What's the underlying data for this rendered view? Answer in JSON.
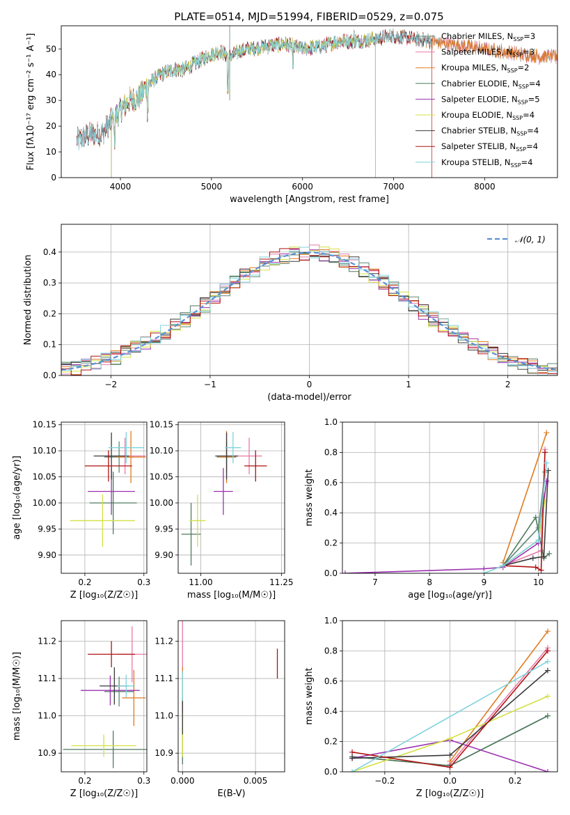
{
  "colors": {
    "series": [
      "#5e8874",
      "#e879a8",
      "#e07a1f",
      "#4e7a5e",
      "#9b30b0",
      "#d4e040",
      "#3a3a3a",
      "#b01010",
      "#7fd3dd"
    ],
    "normal": "#5b8fd6",
    "grid": "#b0b0b0"
  },
  "figure": {
    "title": "PLATE=0514, MJD=51994, FIBERID=0529, z=0.075"
  },
  "chart_data": [
    {
      "id": "spectrum",
      "type": "line",
      "title": "PLATE=0514, MJD=51994, FIBERID=0529, z=0.075",
      "xlabel": "wavelength [Angstrom, rest frame]",
      "ylabel": "Flux [fλ10⁻¹⁷ erg cm⁻² s⁻¹ A⁻¹]",
      "xlim": [
        3350,
        8800
      ],
      "ylim": [
        0,
        59
      ],
      "xticks": [
        4000,
        5000,
        6000,
        7000,
        8000
      ],
      "yticks": [
        0,
        10,
        20,
        30,
        40,
        50
      ],
      "grid": false,
      "legend_position": "top-right",
      "legend": [
        {
          "label": "Chabrier MILES, N",
          "sub": "SSP",
          "suffix": "=3"
        },
        {
          "label": "Salpeter MILES, N",
          "sub": "SSP",
          "suffix": "=3"
        },
        {
          "label": "Kroupa MILES, N",
          "sub": "SSP",
          "suffix": "=2"
        },
        {
          "label": "Chabrier ELODIE, N",
          "sub": "SSP",
          "suffix": "=4"
        },
        {
          "label": "Salpeter ELODIE, N",
          "sub": "SSP",
          "suffix": "=5"
        },
        {
          "label": "Kroupa ELODIE, N",
          "sub": "SSP",
          "suffix": "=4"
        },
        {
          "label": "Chabrier STELIB, N",
          "sub": "SSP",
          "suffix": "=4"
        },
        {
          "label": "Salpeter STELIB, N",
          "sub": "SSP",
          "suffix": "=4"
        },
        {
          "label": "Kroupa STELIB, N",
          "sub": "SSP",
          "suffix": "=4"
        }
      ],
      "continuum": [
        [
          3520,
          14
        ],
        [
          3600,
          16
        ],
        [
          3700,
          17
        ],
        [
          3800,
          17
        ],
        [
          3900,
          22
        ],
        [
          4000,
          26
        ],
        [
          4100,
          30
        ],
        [
          4200,
          31
        ],
        [
          4300,
          36
        ],
        [
          4400,
          39
        ],
        [
          4500,
          41
        ],
        [
          4600,
          42
        ],
        [
          4700,
          42
        ],
        [
          4800,
          44
        ],
        [
          4900,
          46
        ],
        [
          5000,
          48
        ],
        [
          5100,
          49
        ],
        [
          5200,
          47
        ],
        [
          5300,
          49
        ],
        [
          5400,
          50
        ],
        [
          5600,
          51
        ],
        [
          5800,
          52
        ],
        [
          6000,
          50
        ],
        [
          6200,
          51
        ],
        [
          6400,
          53
        ],
        [
          6600,
          53
        ],
        [
          6800,
          54
        ],
        [
          7000,
          55
        ],
        [
          7200,
          54
        ],
        [
          7400,
          53
        ],
        [
          7600,
          52
        ],
        [
          7800,
          51
        ],
        [
          8000,
          50
        ],
        [
          8200,
          49
        ],
        [
          8400,
          48
        ],
        [
          8600,
          47
        ],
        [
          8800,
          47
        ]
      ],
      "elodie_range": [
        3900,
        6800
      ],
      "stelib_range": [
        3520,
        7420
      ],
      "miles_range": [
        3520,
        8800
      ]
    },
    {
      "id": "residuals",
      "type": "line",
      "xlabel": "(data-model)/error",
      "ylabel": "Normed distribution",
      "xlim": [
        -2.5,
        2.5
      ],
      "ylim": [
        0,
        0.49
      ],
      "xticks": [
        -2,
        -1,
        0,
        1,
        2
      ],
      "yticks": [
        0.0,
        0.1,
        0.2,
        0.3,
        0.4
      ],
      "grid": true,
      "legend_position": "top-right",
      "legend": [
        {
          "label": "𝒩(0, 1)",
          "style": "dashed"
        }
      ],
      "bin_width": 0.1
    },
    {
      "id": "age_vs_Z",
      "type": "scatter",
      "xlabel": "Z [log₁₀(Z/Z☉)]",
      "ylabel": "age  [log₁₀(age/yr)]",
      "xlim": [
        0.16,
        0.305
      ],
      "ylim": [
        9.865,
        10.155
      ],
      "xticks": [
        0.2,
        0.3
      ],
      "yticks": [
        9.9,
        9.95,
        10.0,
        10.05,
        10.1,
        10.15
      ],
      "grid": true,
      "points": [
        {
          "x": 0.258,
          "y": 10.088,
          "xerr": 0.025,
          "yerr": 0.03
        },
        {
          "x": 0.268,
          "y": 10.09,
          "xerr": 0.035,
          "yerr": 0.035
        },
        {
          "x": 0.278,
          "y": 10.088,
          "xerr": 0.025,
          "yerr": 0.05
        },
        {
          "x": 0.248,
          "y": 10.0,
          "xerr": 0.04,
          "yerr": 0.06
        },
        {
          "x": 0.245,
          "y": 10.022,
          "xerr": 0.04,
          "yerr": 0.045
        },
        {
          "x": 0.23,
          "y": 9.966,
          "xerr": 0.055,
          "yerr": 0.05
        },
        {
          "x": 0.245,
          "y": 10.09,
          "xerr": 0.03,
          "yerr": 0.045
        },
        {
          "x": 0.24,
          "y": 10.071,
          "xerr": 0.04,
          "yerr": 0.03
        },
        {
          "x": 0.27,
          "y": 10.106,
          "xerr": 0.03,
          "yerr": 0.03
        }
      ]
    },
    {
      "id": "age_vs_mass",
      "type": "scatter",
      "xlabel": "mass [log₁₀(M/M☉)]",
      "ylabel": "",
      "xlim": [
        10.93,
        11.26
      ],
      "ylim": [
        9.865,
        10.155
      ],
      "xticks": [
        11.0,
        11.25
      ],
      "yticks": [
        9.9,
        9.95,
        10.0,
        10.05,
        10.1,
        10.15
      ],
      "grid": true,
      "points": [
        {
          "x": 11.08,
          "y": 10.088,
          "xerr": 0.03,
          "yerr": 0.03
        },
        {
          "x": 11.15,
          "y": 10.09,
          "xerr": 0.04,
          "yerr": 0.035
        },
        {
          "x": 11.08,
          "y": 10.088,
          "xerr": 0.025,
          "yerr": 0.05
        },
        {
          "x": 10.97,
          "y": 9.94,
          "xerr": 0.03,
          "yerr": 0.06
        },
        {
          "x": 11.07,
          "y": 10.022,
          "xerr": 0.03,
          "yerr": 0.045
        },
        {
          "x": 10.99,
          "y": 9.966,
          "xerr": 0.025,
          "yerr": 0.05
        },
        {
          "x": 11.08,
          "y": 10.09,
          "xerr": 0.035,
          "yerr": 0.045
        },
        {
          "x": 11.17,
          "y": 10.071,
          "xerr": 0.035,
          "yerr": 0.03
        },
        {
          "x": 11.1,
          "y": 10.106,
          "xerr": 0.025,
          "yerr": 0.03
        }
      ]
    },
    {
      "id": "weight_vs_age",
      "type": "line",
      "xlabel": "age  [log₁₀(age/yr)]",
      "ylabel": "mass weight",
      "xlim": [
        6.4,
        10.35
      ],
      "ylim": [
        0.0,
        1.0
      ],
      "xticks": [
        7,
        8,
        9,
        10
      ],
      "yticks": [
        0.0,
        0.2,
        0.4,
        0.6,
        0.8,
        1.0
      ],
      "grid": true,
      "series": [
        {
          "x": [
            9.35,
            10.0,
            10.12
          ],
          "y": [
            0.05,
            0.3,
            0.67
          ]
        },
        {
          "x": [
            9.35,
            10.05,
            10.12
          ],
          "y": [
            0.05,
            0.15,
            0.82
          ]
        },
        {
          "x": [
            9.35,
            10.15
          ],
          "y": [
            0.07,
            0.93
          ]
        },
        {
          "x": [
            9.35,
            9.95,
            10.1,
            10.2
          ],
          "y": [
            0.05,
            0.37,
            0.1,
            0.13
          ]
        },
        {
          "x": [
            6.45,
            9.0,
            9.35,
            10.0,
            10.15
          ],
          "y": [
            0.0,
            0.03,
            0.04,
            0.2,
            0.61
          ]
        },
        {
          "x": [
            9.0,
            9.35,
            10.0,
            10.12
          ],
          "y": [
            0.0,
            0.05,
            0.22,
            0.48
          ]
        },
        {
          "x": [
            9.35,
            9.9,
            10.1,
            10.18
          ],
          "y": [
            0.05,
            0.1,
            0.11,
            0.68
          ]
        },
        {
          "x": [
            9.35,
            9.95,
            10.05,
            10.12
          ],
          "y": [
            0.05,
            0.04,
            0.02,
            0.8
          ]
        },
        {
          "x": [
            9.0,
            9.35,
            10.0,
            10.15
          ],
          "y": [
            0.0,
            0.05,
            0.22,
            0.73
          ]
        }
      ]
    },
    {
      "id": "mass_vs_Z",
      "type": "scatter",
      "xlabel": "Z [log₁₀(Z/Z☉)]",
      "ylabel": "mass [log₁₀(M/M☉)]",
      "xlim": [
        0.16,
        0.305
      ],
      "ylim": [
        10.85,
        11.255
      ],
      "xticks": [
        0.2,
        0.3
      ],
      "yticks": [
        10.9,
        11.0,
        11.1,
        11.2
      ],
      "grid": true,
      "points": [
        {
          "x": 0.258,
          "y": 11.065,
          "xerr": 0.025,
          "yerr": 0.04
        },
        {
          "x": 0.28,
          "y": 11.165,
          "xerr": 0.025,
          "yerr": 0.075
        },
        {
          "x": 0.283,
          "y": 11.048,
          "xerr": 0.02,
          "yerr": 0.075
        },
        {
          "x": 0.248,
          "y": 10.91,
          "xerr": 0.085,
          "yerr": 0.05
        },
        {
          "x": 0.243,
          "y": 11.068,
          "xerr": 0.05,
          "yerr": 0.04
        },
        {
          "x": 0.232,
          "y": 10.92,
          "xerr": 0.055,
          "yerr": 0.03
        },
        {
          "x": 0.25,
          "y": 11.08,
          "xerr": 0.025,
          "yerr": 0.05
        },
        {
          "x": 0.245,
          "y": 11.165,
          "xerr": 0.04,
          "yerr": 0.035
        },
        {
          "x": 0.27,
          "y": 11.08,
          "xerr": 0.015,
          "yerr": 0.03
        }
      ]
    },
    {
      "id": "mass_vs_ebv",
      "type": "scatter",
      "xlabel": "E(B-V)",
      "ylabel": "",
      "xlim": [
        -0.0003,
        0.007
      ],
      "ylim": [
        10.85,
        11.255
      ],
      "xticks": [
        0.0,
        0.005
      ],
      "yticks": [
        10.9,
        11.0,
        11.1,
        11.2
      ],
      "grid": true,
      "points": [
        {
          "x": 0.0,
          "y": 11.08,
          "yerr": 0.04
        },
        {
          "x": 0.0,
          "y": 11.18,
          "yerr": 0.08
        },
        {
          "x": 0.0,
          "y": 11.05,
          "yerr": 0.08
        },
        {
          "x": 0.0,
          "y": 10.92,
          "yerr": 0.05
        },
        {
          "x": 0.0,
          "y": 11.0,
          "yerr": 0.04
        },
        {
          "x": 0.0,
          "y": 10.95,
          "yerr": 0.06
        },
        {
          "x": 0.0,
          "y": 11.0,
          "yerr": 0.05
        },
        {
          "x": 0.0065,
          "y": 11.14,
          "yerr": 0.04
        },
        {
          "x": 0.0,
          "y": 11.08,
          "yerr": 0.04
        }
      ]
    },
    {
      "id": "weight_vs_Z",
      "type": "line",
      "xlabel": "Z [log₁₀(Z/Z☉)]",
      "ylabel": "mass weight",
      "xlim": [
        -0.33,
        0.33
      ],
      "ylim": [
        0.0,
        1.0
      ],
      "xticks": [
        -0.2,
        0.0,
        0.2
      ],
      "yticks": [
        0.0,
        0.2,
        0.4,
        0.6,
        0.8,
        1.0
      ],
      "grid": true,
      "series": [
        {
          "x": [
            -0.3,
            0.0,
            0.3
          ],
          "y": [
            0.1,
            0.04,
            0.37
          ]
        },
        {
          "x": [
            0.0,
            0.3
          ],
          "y": [
            0.05,
            0.82
          ]
        },
        {
          "x": [
            0.0,
            0.3
          ],
          "y": [
            0.07,
            0.93
          ]
        },
        {
          "x": [
            -0.3,
            0.0,
            0.3
          ],
          "y": [
            0.1,
            0.04,
            0.37
          ]
        },
        {
          "x": [
            -0.3,
            0.0,
            0.3
          ],
          "y": [
            0.09,
            0.21,
            0.0
          ]
        },
        {
          "x": [
            -0.3,
            0.0,
            0.3
          ],
          "y": [
            0.0,
            0.22,
            0.5
          ]
        },
        {
          "x": [
            -0.3,
            0.0,
            0.3
          ],
          "y": [
            0.09,
            0.11,
            0.67
          ]
        },
        {
          "x": [
            -0.3,
            0.0,
            0.3
          ],
          "y": [
            0.13,
            0.03,
            0.8
          ]
        },
        {
          "x": [
            -0.3,
            0.3
          ],
          "y": [
            0.0,
            0.73
          ]
        }
      ]
    }
  ]
}
